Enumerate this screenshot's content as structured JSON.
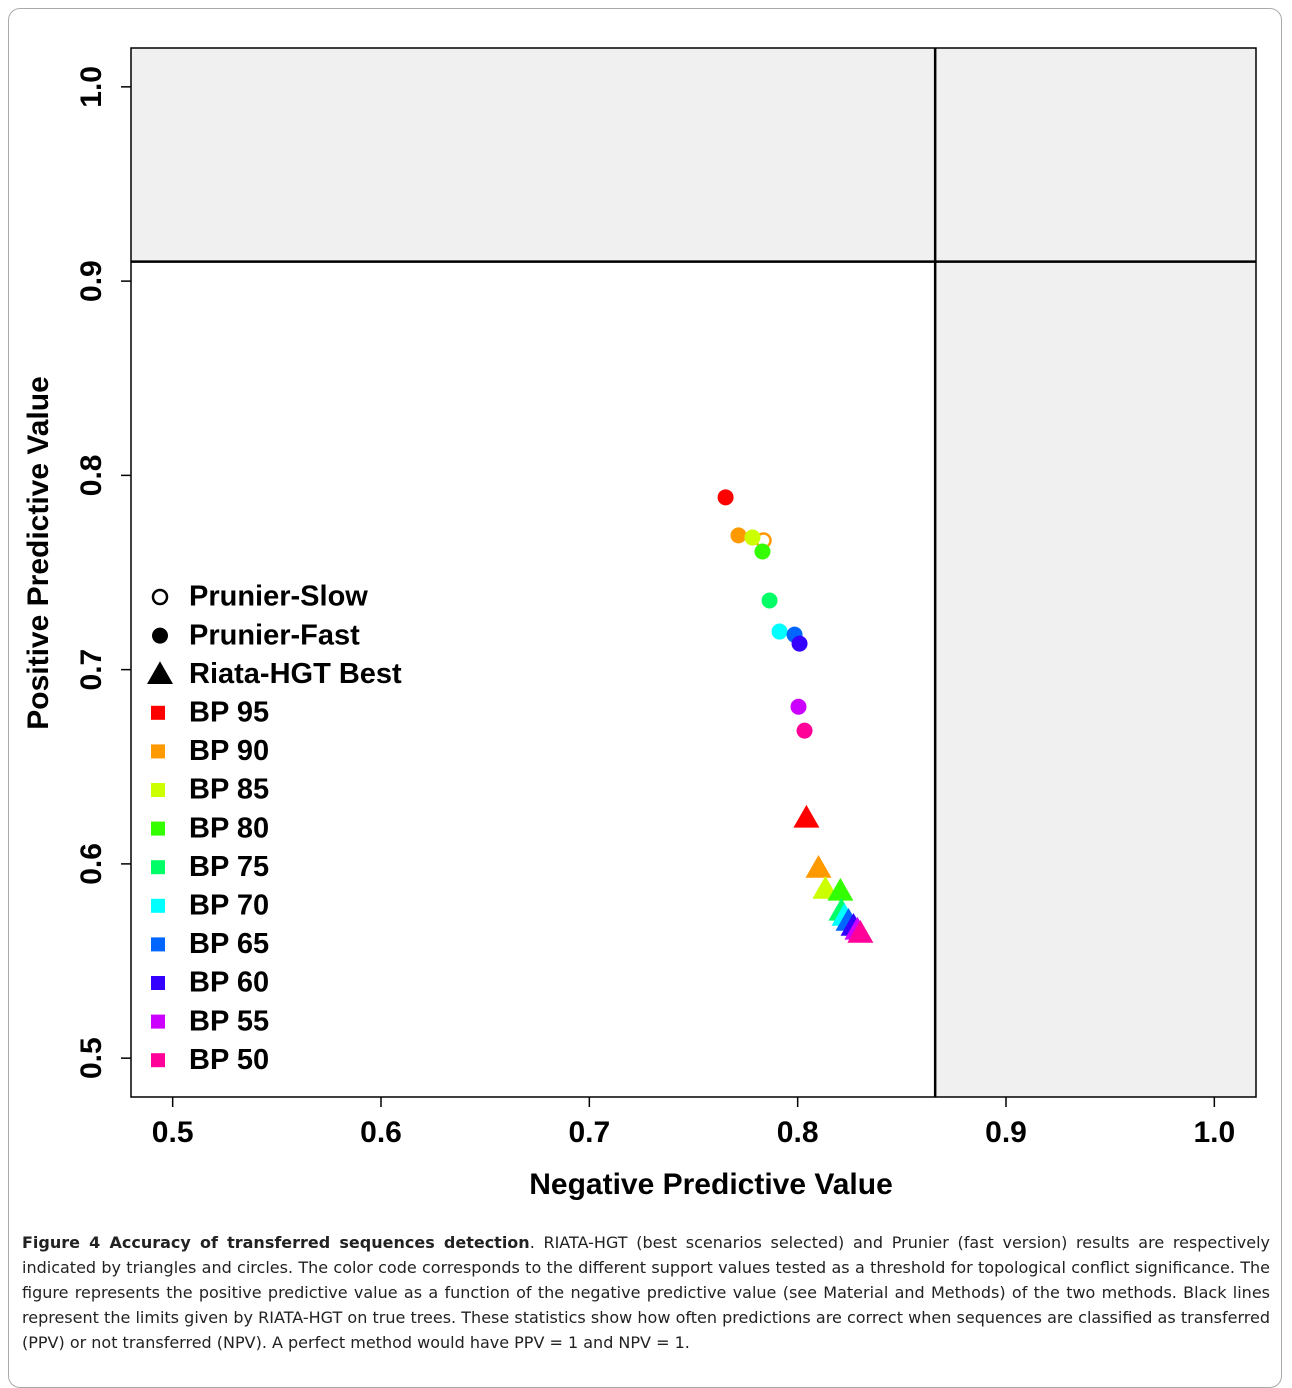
{
  "chart_data": {
    "type": "scatter",
    "xlabel": "Negative Predictive Value",
    "ylabel": "Positive Predictive Value",
    "xlim": [
      0.48,
      1.02
    ],
    "ylim": [
      0.48,
      1.02
    ],
    "xticks": [
      0.5,
      0.6,
      0.7,
      0.8,
      0.9,
      {
        "value": 1,
        "label": "1.0"
      }
    ],
    "yticks": [
      0.5,
      0.6,
      0.7,
      0.8,
      0.9,
      {
        "value": 1,
        "label": "1.0"
      }
    ],
    "thresholds": {
      "x": 0.866,
      "y": 0.91
    },
    "shade_color": "#f0f0f0",
    "categories": [
      "BP 95",
      "BP 90",
      "BP 85",
      "BP 80",
      "BP 75",
      "BP 70",
      "BP 65",
      "BP 60",
      "BP 55",
      "BP 50"
    ],
    "colors": [
      "#ff0000",
      "#ff9900",
      "#ccff00",
      "#33ff00",
      "#00ff66",
      "#00ffff",
      "#0066ff",
      "#3300ff",
      "#cc00ff",
      "#ff0099"
    ],
    "series": [
      {
        "name": "Prunier-Slow",
        "marker": "open-circle",
        "x": [
          null,
          0.7836,
          null,
          null,
          null,
          null,
          null,
          null,
          null,
          null
        ],
        "values": [
          null,
          0.7665,
          null,
          null,
          null,
          null,
          null,
          null,
          null,
          null
        ]
      },
      {
        "name": "Prunier-Fast",
        "marker": "circle",
        "x": [
          0.7654,
          0.7716,
          0.7783,
          0.7831,
          0.7865,
          0.7913,
          0.7985,
          0.8009,
          0.8004,
          0.8033
        ],
        "values": [
          0.7887,
          0.7691,
          0.768,
          0.7608,
          0.7356,
          0.7196,
          0.718,
          0.7134,
          0.6809,
          0.6686
        ]
      },
      {
        "name": "Riata-HGT Best",
        "marker": "triangle",
        "x": [
          0.8042,
          0.81,
          0.8133,
          0.8205,
          0.821,
          0.8225,
          0.8244,
          0.8268,
          0.8287,
          0.8301
        ],
        "values": [
          0.6237,
          0.5979,
          0.5871,
          0.5861,
          0.5758,
          0.5732,
          0.5706,
          0.568,
          0.566,
          0.5644
        ]
      }
    ]
  },
  "caption": {
    "title": "Figure 4 Accuracy of transferred sequences detection",
    "text": ". RIATA-HGT (best scenarios selected) and Prunier (fast version) results are respectively indicated by triangles and circles. The color code corresponds to the different support values tested as a threshold for topological conflict significance. The figure represents the positive predictive value as a function of the negative predictive value (see Material and Methods) of the two methods. Black lines represent the limits given by RIATA-HGT on true trees. These statistics show how often predictions are correct when sequences are classified as transferred (PPV) or not transferred (NPV). A perfect method would have PPV = 1 and NPV = 1."
  }
}
